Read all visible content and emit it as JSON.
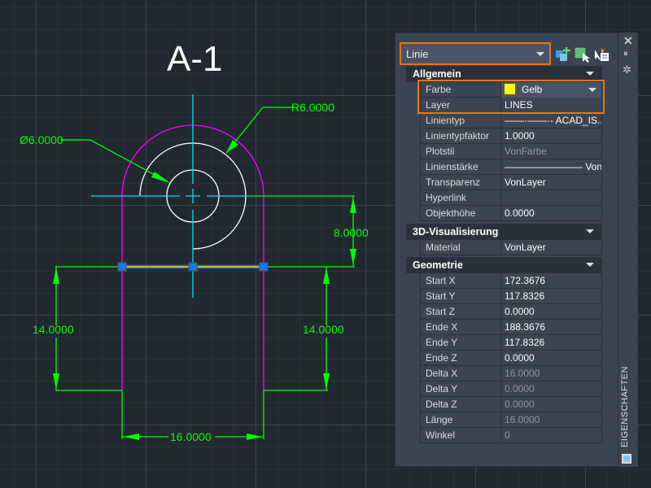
{
  "drawing": {
    "title": "A-1",
    "dims": {
      "diameter": "Ø6.0000",
      "radius": "R6.0000",
      "height_upper": "8.0000",
      "height_left": "14.0000",
      "height_right": "14.0000",
      "width_bottom": "16.0000"
    }
  },
  "colors": {
    "accent": "#e87511",
    "outline": "#ff00ff",
    "dimension": "#00ff00",
    "centerline": "#00e5ff",
    "selected": "#ffd700",
    "grip": "#0a7cff"
  },
  "panel": {
    "object_type": "Linie",
    "side_title": "EIGENSCHAFTEN",
    "toolbar": [
      "quick-select-icon",
      "select-objects-icon",
      "toggle-pickadd-icon"
    ],
    "side_icons": [
      "close-icon",
      "auto-hide-icon",
      "settings-icon"
    ],
    "sections": [
      {
        "title": "Allgemein",
        "rows": [
          {
            "k": "Farbe",
            "v": "Gelb",
            "swatch": "#ffff00"
          },
          {
            "k": "Layer",
            "v": "LINES"
          },
          {
            "k": "Linientyp",
            "v": "——·——·- ACAD_IS..."
          },
          {
            "k": "Linientypfaktor",
            "v": "1.0000"
          },
          {
            "k": "Plotstil",
            "v": "VonFarbe",
            "dim": true
          },
          {
            "k": "Linienstärke",
            "v": "———————— VonLayer"
          },
          {
            "k": "Transparenz",
            "v": "VonLayer"
          },
          {
            "k": "Hyperlink",
            "v": ""
          },
          {
            "k": "Objekthöhe",
            "v": "0.0000"
          }
        ]
      },
      {
        "title": "3D-Visualisierung",
        "rows": [
          {
            "k": "Material",
            "v": "VonLayer"
          }
        ]
      },
      {
        "title": "Geometrie",
        "rows": [
          {
            "k": "Start X",
            "v": "172.3676"
          },
          {
            "k": "Start Y",
            "v": "117.8326"
          },
          {
            "k": "Start Z",
            "v": "0.0000"
          },
          {
            "k": "Ende X",
            "v": "188.3676"
          },
          {
            "k": "Ende Y",
            "v": "117.8326"
          },
          {
            "k": "Ende Z",
            "v": "0.0000"
          },
          {
            "k": "Delta X",
            "v": "16.0000",
            "dim": true
          },
          {
            "k": "Delta Y",
            "v": "0.0000",
            "dim": true
          },
          {
            "k": "Delta Z",
            "v": "0.0000",
            "dim": true
          },
          {
            "k": "Länge",
            "v": "16.0000",
            "dim": true
          },
          {
            "k": "Winkel",
            "v": "0",
            "dim": true
          }
        ]
      }
    ]
  }
}
